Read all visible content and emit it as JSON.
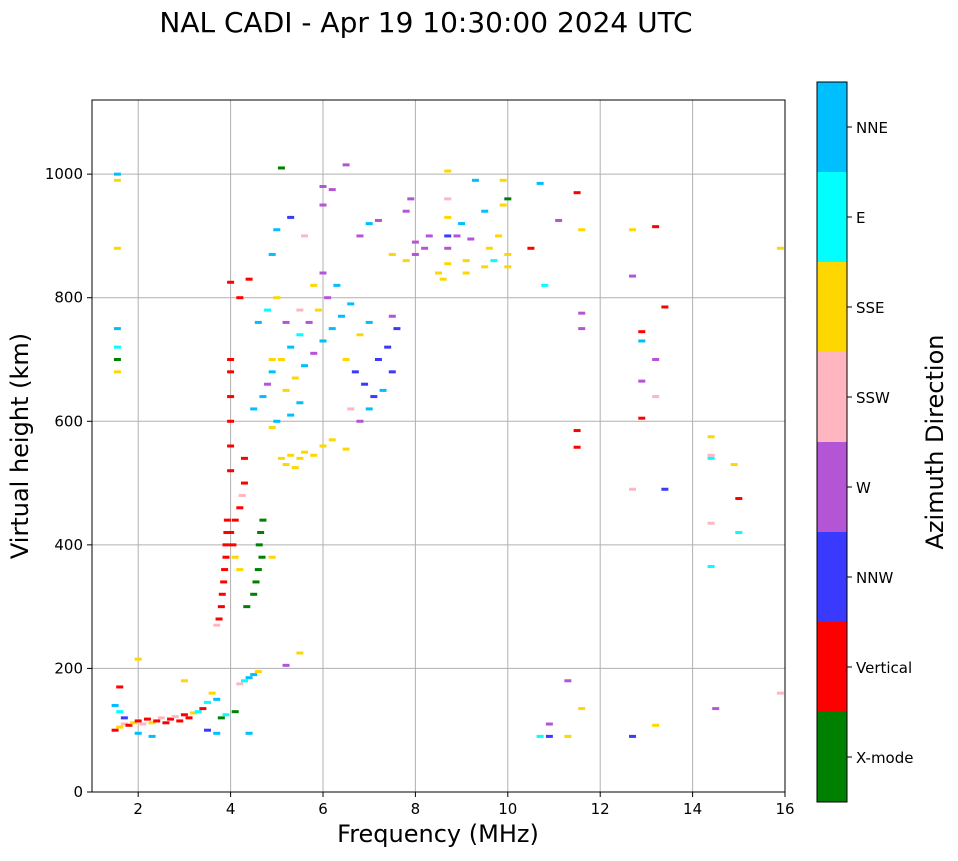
{
  "chart_data": {
    "type": "scatter",
    "title": "NAL CADI - Apr 19 10:30:00 2024 UTC",
    "xlabel": "Frequency (MHz)",
    "ylabel": "Virtual height (km)",
    "xlim": [
      1,
      16
    ],
    "ylim": [
      0,
      1120
    ],
    "xticks": [
      2,
      4,
      6,
      8,
      10,
      12,
      14,
      16
    ],
    "yticks": [
      0,
      200,
      400,
      600,
      800,
      1000
    ],
    "grid": true,
    "colorbar": {
      "label": "Azimuth Direction",
      "categories": [
        {
          "name": "X-mode",
          "color": "#008000"
        },
        {
          "name": "Vertical",
          "color": "#ff0000"
        },
        {
          "name": "NNW",
          "color": "#3a3aff"
        },
        {
          "name": "W",
          "color": "#b455d6"
        },
        {
          "name": "SSW",
          "color": "#ffb6c1"
        },
        {
          "name": "SSE",
          "color": "#ffd700"
        },
        {
          "name": "E",
          "color": "#00ffff"
        },
        {
          "name": "NNE",
          "color": "#00bfff"
        }
      ]
    },
    "points": [
      [
        1.5,
        100,
        "Vertical"
      ],
      [
        1.6,
        105,
        "SSE"
      ],
      [
        1.7,
        110,
        "SSW"
      ],
      [
        1.8,
        108,
        "Vertical"
      ],
      [
        1.9,
        112,
        "SSE"
      ],
      [
        2.0,
        115,
        "Vertical"
      ],
      [
        2.1,
        110,
        "SSW"
      ],
      [
        2.2,
        118,
        "Vertical"
      ],
      [
        2.3,
        112,
        "SSE"
      ],
      [
        2.4,
        115,
        "Vertical"
      ],
      [
        2.5,
        120,
        "SSW"
      ],
      [
        2.6,
        112,
        "Vertical"
      ],
      [
        2.7,
        118,
        "Vertical"
      ],
      [
        2.8,
        122,
        "SSW"
      ],
      [
        2.9,
        115,
        "Vertical"
      ],
      [
        3.0,
        125,
        "Vertical"
      ],
      [
        3.1,
        120,
        "Vertical"
      ],
      [
        3.2,
        128,
        "SSE"
      ],
      [
        3.3,
        130,
        "E"
      ],
      [
        3.4,
        135,
        "Vertical"
      ],
      [
        3.5,
        145,
        "E"
      ],
      [
        3.6,
        160,
        "SSE"
      ],
      [
        3.7,
        150,
        "NNE"
      ],
      [
        3.8,
        120,
        "X-mode"
      ],
      [
        3.9,
        125,
        "E"
      ],
      [
        1.5,
        140,
        "NNE"
      ],
      [
        1.6,
        130,
        "E"
      ],
      [
        1.7,
        120,
        "NNW"
      ],
      [
        2.0,
        95,
        "NNE"
      ],
      [
        2.3,
        90,
        "NNE"
      ],
      [
        3.5,
        100,
        "NNW"
      ],
      [
        4.1,
        130,
        "X-mode"
      ],
      [
        4.2,
        175,
        "SSW"
      ],
      [
        4.3,
        180,
        "E"
      ],
      [
        4.4,
        185,
        "NNE"
      ],
      [
        4.5,
        190,
        "NNE"
      ],
      [
        4.6,
        195,
        "SSE"
      ],
      [
        4.4,
        95,
        "NNE"
      ],
      [
        3.0,
        180,
        "SSE"
      ],
      [
        1.6,
        170,
        "Vertical"
      ],
      [
        2.0,
        215,
        "SSE"
      ],
      [
        3.7,
        95,
        "NNE"
      ],
      [
        5.2,
        205,
        "W"
      ],
      [
        5.5,
        225,
        "SSE"
      ],
      [
        3.7,
        270,
        "SSW"
      ],
      [
        3.75,
        280,
        "Vertical"
      ],
      [
        3.8,
        300,
        "Vertical"
      ],
      [
        3.82,
        320,
        "Vertical"
      ],
      [
        3.85,
        340,
        "Vertical"
      ],
      [
        3.87,
        360,
        "Vertical"
      ],
      [
        3.9,
        380,
        "Vertical"
      ],
      [
        3.9,
        400,
        "Vertical"
      ],
      [
        3.92,
        420,
        "Vertical"
      ],
      [
        3.93,
        440,
        "Vertical"
      ],
      [
        4.0,
        420,
        "Vertical"
      ],
      [
        4.05,
        400,
        "Vertical"
      ],
      [
        4.1,
        380,
        "SSE"
      ],
      [
        4.2,
        360,
        "SSE"
      ],
      [
        4.1,
        440,
        "Vertical"
      ],
      [
        4.2,
        460,
        "Vertical"
      ],
      [
        4.25,
        480,
        "SSW"
      ],
      [
        4.3,
        500,
        "Vertical"
      ],
      [
        4.0,
        520,
        "Vertical"
      ],
      [
        4.0,
        560,
        "Vertical"
      ],
      [
        4.0,
        600,
        "Vertical"
      ],
      [
        4.0,
        640,
        "Vertical"
      ],
      [
        4.0,
        680,
        "Vertical"
      ],
      [
        4.0,
        700,
        "Vertical"
      ],
      [
        4.2,
        800,
        "Vertical"
      ],
      [
        4.4,
        830,
        "Vertical"
      ],
      [
        4.0,
        825,
        "Vertical"
      ],
      [
        4.3,
        540,
        "Vertical"
      ],
      [
        4.35,
        300,
        "X-mode"
      ],
      [
        4.5,
        320,
        "X-mode"
      ],
      [
        4.55,
        340,
        "X-mode"
      ],
      [
        4.6,
        360,
        "X-mode"
      ],
      [
        4.62,
        400,
        "X-mode"
      ],
      [
        4.65,
        420,
        "X-mode"
      ],
      [
        4.7,
        440,
        "X-mode"
      ],
      [
        4.68,
        380,
        "X-mode"
      ],
      [
        4.9,
        380,
        "SSE"
      ],
      [
        5.1,
        540,
        "SSE"
      ],
      [
        5.2,
        530,
        "SSE"
      ],
      [
        5.3,
        545,
        "SSE"
      ],
      [
        5.4,
        525,
        "SSE"
      ],
      [
        5.5,
        540,
        "SSE"
      ],
      [
        5.6,
        550,
        "SSE"
      ],
      [
        5.8,
        545,
        "SSE"
      ],
      [
        6.0,
        560,
        "SSE"
      ],
      [
        6.2,
        570,
        "SSE"
      ],
      [
        6.5,
        555,
        "SSE"
      ],
      [
        4.9,
        590,
        "SSE"
      ],
      [
        5.0,
        600,
        "NNE"
      ],
      [
        5.3,
        610,
        "NNE"
      ],
      [
        5.5,
        630,
        "NNE"
      ],
      [
        5.2,
        650,
        "SSE"
      ],
      [
        5.4,
        670,
        "SSE"
      ],
      [
        5.6,
        690,
        "NNE"
      ],
      [
        5.8,
        710,
        "W"
      ],
      [
        6.0,
        730,
        "NNE"
      ],
      [
        6.2,
        750,
        "NNE"
      ],
      [
        6.4,
        770,
        "NNE"
      ],
      [
        6.6,
        790,
        "NNE"
      ],
      [
        5.1,
        700,
        "SSE"
      ],
      [
        5.3,
        720,
        "NNE"
      ],
      [
        5.5,
        740,
        "E"
      ],
      [
        5.7,
        760,
        "W"
      ],
      [
        5.9,
        780,
        "SSE"
      ],
      [
        6.1,
        800,
        "W"
      ],
      [
        6.3,
        820,
        "NNE"
      ],
      [
        6.5,
        700,
        "SSE"
      ],
      [
        6.7,
        680,
        "NNW"
      ],
      [
        6.9,
        660,
        "NNW"
      ],
      [
        7.1,
        640,
        "NNW"
      ],
      [
        7.3,
        650,
        "NNE"
      ],
      [
        7.5,
        680,
        "NNW"
      ],
      [
        6.6,
        620,
        "SSW"
      ],
      [
        6.8,
        600,
        "W"
      ],
      [
        7.0,
        620,
        "NNE"
      ],
      [
        7.2,
        700,
        "NNW"
      ],
      [
        7.4,
        720,
        "NNW"
      ],
      [
        7.6,
        750,
        "NNW"
      ],
      [
        7.5,
        770,
        "W"
      ],
      [
        7.0,
        760,
        "NNE"
      ],
      [
        6.8,
        740,
        "SSE"
      ],
      [
        4.5,
        620,
        "NNE"
      ],
      [
        4.7,
        640,
        "NNE"
      ],
      [
        4.8,
        660,
        "W"
      ],
      [
        4.9,
        700,
        "SSE"
      ],
      [
        4.6,
        760,
        "NNE"
      ],
      [
        4.8,
        780,
        "E"
      ],
      [
        5.0,
        800,
        "SSE"
      ],
      [
        4.9,
        680,
        "NNE"
      ],
      [
        5.2,
        760,
        "W"
      ],
      [
        5.5,
        780,
        "SSW"
      ],
      [
        5.8,
        820,
        "SSE"
      ],
      [
        6.0,
        840,
        "W"
      ],
      [
        4.9,
        870,
        "NNE"
      ],
      [
        5.0,
        910,
        "NNE"
      ],
      [
        5.3,
        930,
        "NNW"
      ],
      [
        5.6,
        900,
        "SSW"
      ],
      [
        5.1,
        1010,
        "X-mode"
      ],
      [
        6.0,
        980,
        "W"
      ],
      [
        6.2,
        975,
        "W"
      ],
      [
        6.5,
        1015,
        "W"
      ],
      [
        6.0,
        950,
        "W"
      ],
      [
        6.8,
        900,
        "W"
      ],
      [
        7.0,
        920,
        "NNE"
      ],
      [
        7.2,
        925,
        "W"
      ],
      [
        7.5,
        870,
        "SSE"
      ],
      [
        7.8,
        860,
        "SSE"
      ],
      [
        7.8,
        940,
        "W"
      ],
      [
        7.9,
        960,
        "W"
      ],
      [
        8.0,
        870,
        "W"
      ],
      [
        8.0,
        890,
        "W"
      ],
      [
        8.2,
        880,
        "W"
      ],
      [
        8.3,
        900,
        "W"
      ],
      [
        8.5,
        840,
        "SSE"
      ],
      [
        8.6,
        830,
        "SSE"
      ],
      [
        8.7,
        855,
        "SSE"
      ],
      [
        8.7,
        880,
        "W"
      ],
      [
        8.7,
        900,
        "NNW"
      ],
      [
        8.7,
        930,
        "SSE"
      ],
      [
        8.7,
        960,
        "SSW"
      ],
      [
        8.9,
        900,
        "W"
      ],
      [
        9.0,
        920,
        "NNE"
      ],
      [
        9.1,
        840,
        "SSE"
      ],
      [
        9.1,
        860,
        "SSE"
      ],
      [
        9.2,
        895,
        "W"
      ],
      [
        9.5,
        850,
        "SSE"
      ],
      [
        9.6,
        880,
        "SSE"
      ],
      [
        9.7,
        860,
        "E"
      ],
      [
        9.8,
        900,
        "SSE"
      ],
      [
        9.9,
        950,
        "SSE"
      ],
      [
        10.0,
        850,
        "SSE"
      ],
      [
        10.0,
        870,
        "SSE"
      ],
      [
        9.3,
        990,
        "NNE"
      ],
      [
        8.7,
        1005,
        "SSE"
      ],
      [
        9.5,
        940,
        "NNE"
      ],
      [
        9.9,
        990,
        "SSE"
      ],
      [
        10.0,
        960,
        "X-mode"
      ],
      [
        10.7,
        985,
        "NNE"
      ],
      [
        10.5,
        880,
        "Vertical"
      ],
      [
        10.8,
        820,
        "E"
      ],
      [
        11.1,
        925,
        "W"
      ],
      [
        11.5,
        970,
        "Vertical"
      ],
      [
        11.6,
        910,
        "SSE"
      ],
      [
        12.7,
        910,
        "SSE"
      ],
      [
        13.2,
        915,
        "Vertical"
      ],
      [
        12.7,
        835,
        "W"
      ],
      [
        13.4,
        785,
        "Vertical"
      ],
      [
        15.9,
        880,
        "SSE"
      ],
      [
        11.6,
        775,
        "W"
      ],
      [
        11.6,
        750,
        "W"
      ],
      [
        12.9,
        745,
        "Vertical"
      ],
      [
        12.9,
        730,
        "NNE"
      ],
      [
        13.2,
        700,
        "W"
      ],
      [
        12.9,
        665,
        "W"
      ],
      [
        13.2,
        640,
        "SSW"
      ],
      [
        12.9,
        605,
        "Vertical"
      ],
      [
        11.5,
        585,
        "Vertical"
      ],
      [
        11.5,
        558,
        "Vertical"
      ],
      [
        14.4,
        575,
        "SSE"
      ],
      [
        14.4,
        545,
        "SSW"
      ],
      [
        14.4,
        540,
        "E"
      ],
      [
        14.9,
        530,
        "SSE"
      ],
      [
        12.7,
        490,
        "SSW"
      ],
      [
        13.4,
        490,
        "NNW"
      ],
      [
        15.0,
        475,
        "Vertical"
      ],
      [
        14.4,
        435,
        "SSW"
      ],
      [
        15.0,
        420,
        "E"
      ],
      [
        14.4,
        365,
        "E"
      ],
      [
        11.3,
        180,
        "W"
      ],
      [
        11.6,
        135,
        "SSE"
      ],
      [
        14.5,
        135,
        "W"
      ],
      [
        15.9,
        160,
        "SSW"
      ],
      [
        10.7,
        90,
        "E"
      ],
      [
        10.9,
        90,
        "NNW"
      ],
      [
        11.3,
        90,
        "SSE"
      ],
      [
        12.7,
        90,
        "NNW"
      ],
      [
        10.9,
        110,
        "W"
      ],
      [
        13.2,
        108,
        "SSE"
      ],
      [
        1.55,
        1000,
        "NNE"
      ],
      [
        1.55,
        990,
        "SSE"
      ],
      [
        1.55,
        880,
        "SSE"
      ],
      [
        1.55,
        750,
        "NNE"
      ],
      [
        1.55,
        720,
        "E"
      ],
      [
        1.55,
        700,
        "X-mode"
      ],
      [
        1.55,
        680,
        "SSE"
      ]
    ]
  }
}
